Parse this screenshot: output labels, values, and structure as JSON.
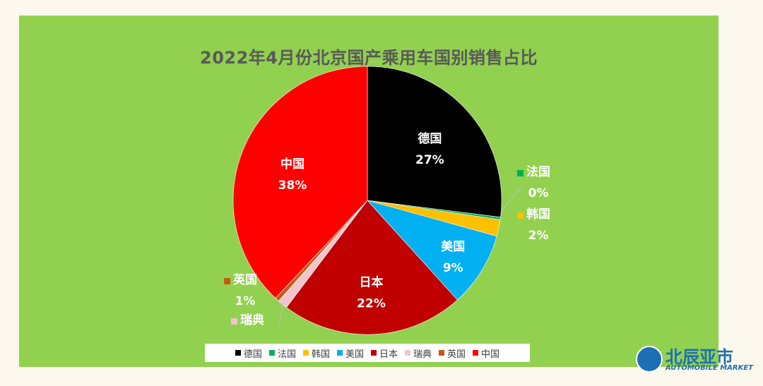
{
  "chart_data": {
    "type": "pie",
    "title": "2022年4月份北京国产乘用车国别销售占比",
    "categories": [
      "德国",
      "法国",
      "韩国",
      "美国",
      "日本",
      "瑞典",
      "英国",
      "中国"
    ],
    "values": [
      27,
      0.3,
      2,
      9,
      22,
      1.2,
      0.5,
      38
    ],
    "labels": [
      "27%",
      "0%",
      "2%",
      "9%",
      "22%",
      "",
      "1%",
      "38%"
    ],
    "colors": [
      "#000000",
      "#00b050",
      "#ffc000",
      "#00b0f0",
      "#c00000",
      "#f2c4ce",
      "#c55a11",
      "#ff0000"
    ],
    "legend_position": "bottom"
  },
  "logo": {
    "name_cn": "北辰亚市",
    "name_en": "AUTOMOBILE MARKET"
  }
}
